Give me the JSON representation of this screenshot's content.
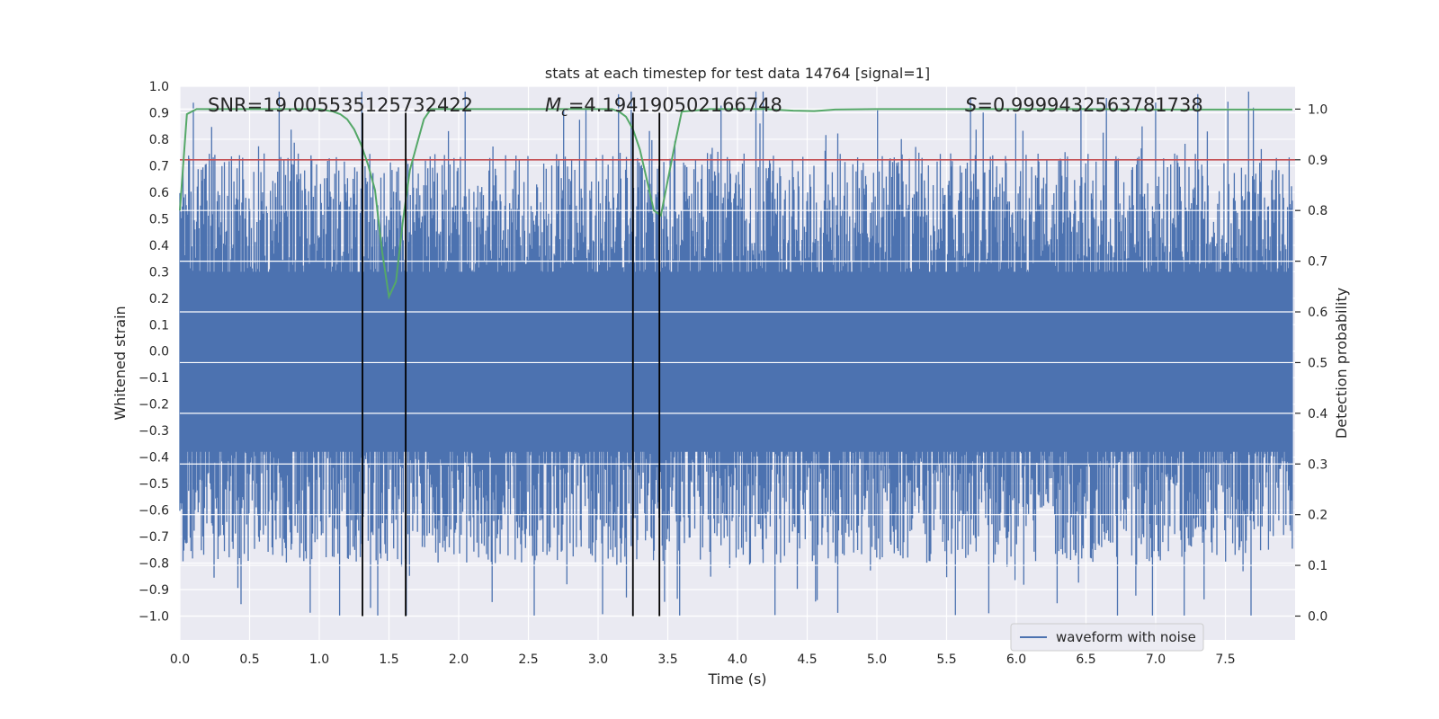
{
  "chart_data": {
    "type": "line",
    "title": "stats at each timestep for test data 14764 [signal=1]",
    "xlabel": "Time (s)",
    "ylabel_left": "Whitened strain",
    "ylabel_right": "Detection probability",
    "xlim": [
      0.0,
      8.0
    ],
    "ylim_left": [
      -1.09,
      1.0
    ],
    "ylim_right": [
      -0.047,
      1.045
    ],
    "x_ticks": [
      "0.0",
      "0.5",
      "1.0",
      "1.5",
      "2.0",
      "2.5",
      "3.0",
      "3.5",
      "4.0",
      "4.5",
      "5.0",
      "5.5",
      "6.0",
      "6.5",
      "7.0",
      "7.5"
    ],
    "x_tick_values": [
      0.0,
      0.5,
      1.0,
      1.5,
      2.0,
      2.5,
      3.0,
      3.5,
      4.0,
      4.5,
      5.0,
      5.5,
      6.0,
      6.5,
      7.0,
      7.5
    ],
    "y_left_ticks": [
      "1.0",
      "0.9",
      "0.8",
      "0.7",
      "0.6",
      "0.5",
      "0.4",
      "0.3",
      "0.2",
      "0.1",
      "0.0",
      "−0.1",
      "−0.2",
      "−0.3",
      "−0.4",
      "−0.5",
      "−0.6",
      "−0.7",
      "−0.8",
      "−0.9",
      "−1.0"
    ],
    "y_left_tick_values": [
      1.0,
      0.9,
      0.8,
      0.7,
      0.6,
      0.5,
      0.4,
      0.3,
      0.2,
      0.1,
      0.0,
      -0.1,
      -0.2,
      -0.3,
      -0.4,
      -0.5,
      -0.6,
      -0.7,
      -0.8,
      -0.9,
      -1.0
    ],
    "y_right_ticks": [
      "1.0",
      "0.9",
      "0.8",
      "0.7",
      "0.6",
      "0.5",
      "0.4",
      "0.3",
      "0.2",
      "0.1",
      "0.0"
    ],
    "y_right_tick_values": [
      1.0,
      0.9,
      0.8,
      0.7,
      0.6,
      0.5,
      0.4,
      0.3,
      0.2,
      0.1,
      0.0
    ],
    "annotations": {
      "snr": "SNR=19.005535125732422",
      "mc_symbol": "M",
      "mc_subscript": "c",
      "mc_value": "=4.194190502166748",
      "s_symbol": "S",
      "s_value": "=0.9999432563781738"
    },
    "legend": {
      "label": "waveform with noise",
      "position": "lower-right"
    },
    "colors": {
      "waveform": "#4c72b0",
      "probability": "#55a868",
      "threshold": "#c44e52",
      "markers": "#000000",
      "background": "#eaeaf2",
      "grid": "#ffffff"
    },
    "threshold": 0.9,
    "vertical_markers": [
      1.31,
      1.62,
      3.25,
      3.44
    ],
    "waveform_envelope": {
      "noise_amplitude": 0.55,
      "duration": 7.98,
      "sample_rate_display": 2048
    },
    "probability_series": {
      "x": [
        0.0,
        0.05,
        0.12,
        0.2,
        0.4,
        0.6,
        0.8,
        1.0,
        1.1,
        1.15,
        1.2,
        1.25,
        1.3,
        1.35,
        1.4,
        1.45,
        1.5,
        1.55,
        1.6,
        1.65,
        1.7,
        1.75,
        1.8,
        2.0,
        2.5,
        3.0,
        3.1,
        3.15,
        3.2,
        3.25,
        3.3,
        3.35,
        3.4,
        3.45,
        3.5,
        3.55,
        3.6,
        3.8,
        4.0,
        4.2,
        4.4,
        4.55,
        4.7,
        5.0,
        5.5,
        6.0,
        6.5,
        7.0,
        7.5,
        7.98
      ],
      "y": [
        0.8,
        0.99,
        1.0,
        1.0,
        1.0,
        1.0,
        1.0,
        1.0,
        0.995,
        0.99,
        0.98,
        0.96,
        0.93,
        0.89,
        0.84,
        0.72,
        0.63,
        0.66,
        0.78,
        0.88,
        0.93,
        0.98,
        1.0,
        1.0,
        1.0,
        1.0,
        1.0,
        0.995,
        0.985,
        0.96,
        0.92,
        0.86,
        0.8,
        0.79,
        0.86,
        0.93,
        0.995,
        1.0,
        1.0,
        1.0,
        0.997,
        0.996,
        0.999,
        1.0,
        1.0,
        1.0,
        1.0,
        0.999,
        0.999,
        0.999
      ]
    }
  }
}
